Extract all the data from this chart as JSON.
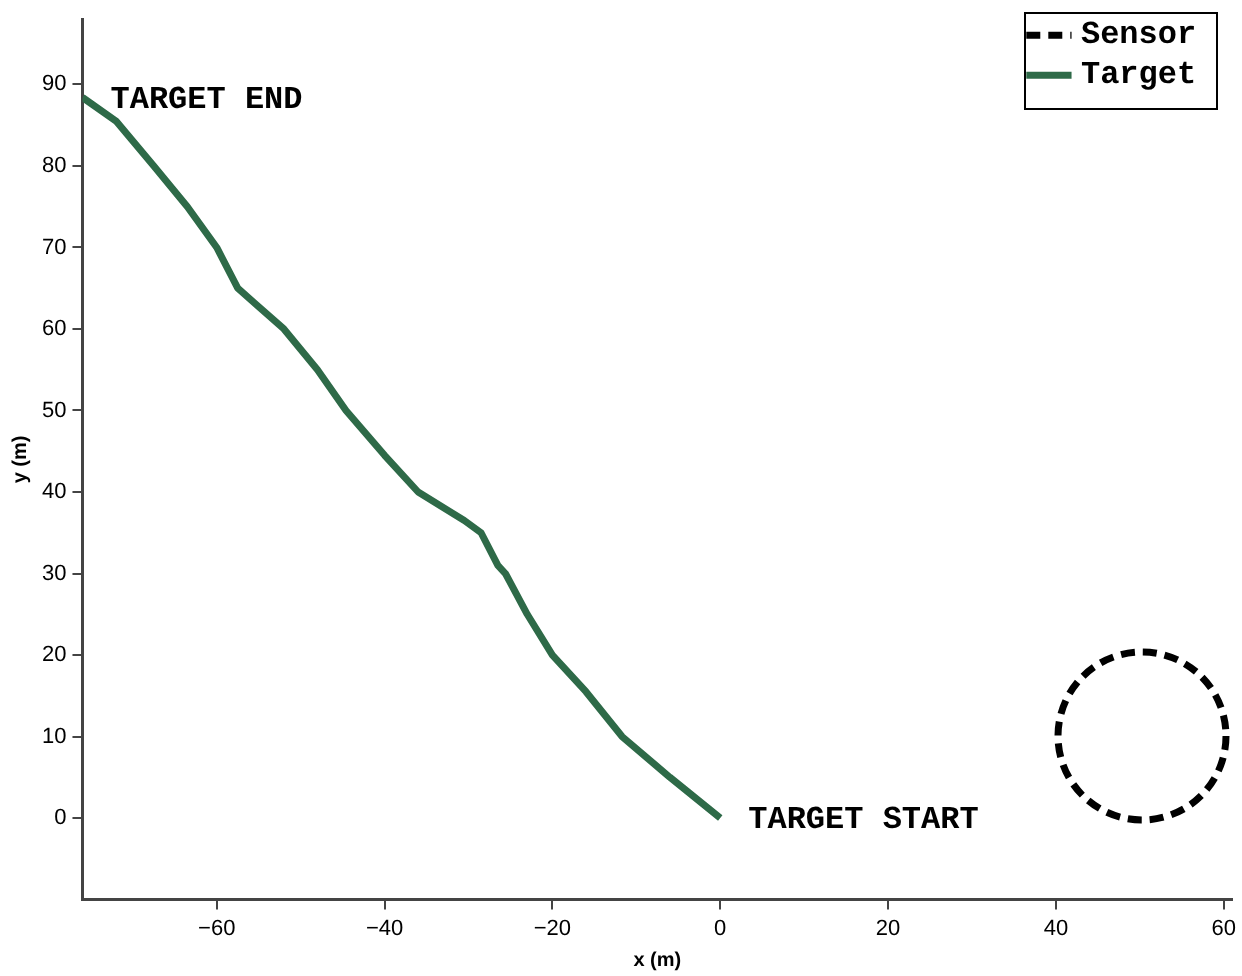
{
  "chart_data": {
    "type": "line",
    "xlabel": "x (m)",
    "ylabel": "y (m)",
    "xlim": [
      -76,
      61
    ],
    "xticks": [
      -60,
      -40,
      -20,
      0,
      20,
      40,
      60
    ],
    "ylim": [
      -10,
      98
    ],
    "yticks": [
      0,
      10,
      20,
      30,
      40,
      50,
      60,
      70,
      80,
      90
    ],
    "grid": false,
    "legend": "top right",
    "marker": "none",
    "series": [
      {
        "name": "Target",
        "color": "#2e6a48",
        "line_style": "solid",
        "x": [
          -76,
          -72,
          -67.5,
          -63.5,
          -60,
          -57.5,
          -52,
          -48,
          -44.6,
          -40,
          -36,
          -30.5,
          -28.5,
          -26.5,
          -25.6,
          -23,
          -20,
          -16,
          -11.7,
          -6,
          0
        ],
        "values": [
          88.4,
          85.5,
          80,
          75,
          70,
          65,
          60,
          55,
          50,
          44.5,
          40,
          36.5,
          35,
          31,
          30,
          25,
          20,
          15.5,
          10,
          5,
          0
        ]
      }
    ],
    "annotations": [
      "Sensor",
      {
        "text": "TARGET END",
        "x": -76,
        "y": 88.4
      },
      {
        "text": "TARGET START",
        "x": 0,
        "y": 0
      }
    ]
  }
}
